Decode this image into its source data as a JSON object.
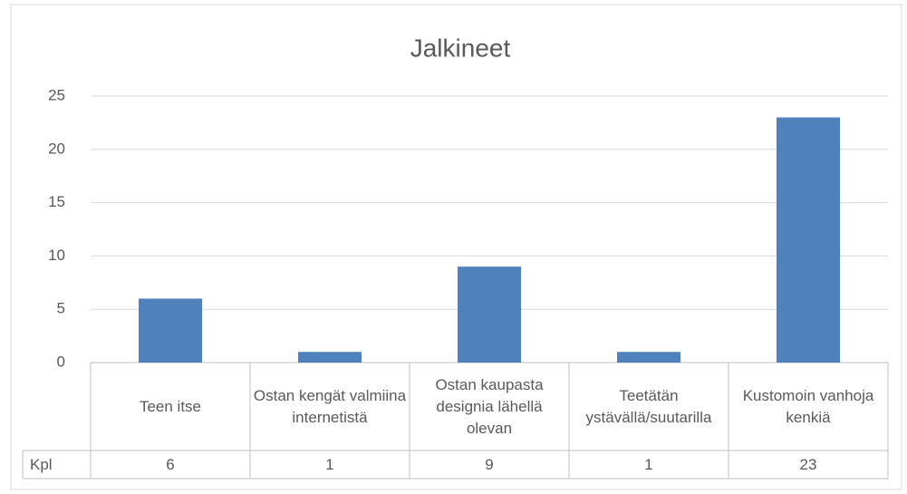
{
  "chart_data": {
    "type": "bar",
    "title": "Jalkineet",
    "categories": [
      "Teen itse",
      "Ostan kengät valmiina internetistä",
      "Ostan kaupasta designia lähellä olevan",
      "Teetätän ystävällä/suutarilla",
      "Kustomoin vanhoja kenkiä"
    ],
    "series": [
      {
        "name": "Kpl",
        "color": "#4f81bd",
        "values": [
          6,
          1,
          9,
          1,
          23
        ]
      }
    ],
    "ylim": [
      0,
      25
    ],
    "yticks": [
      0,
      5,
      10,
      15,
      20,
      25
    ],
    "grid": true,
    "data_table": true
  }
}
